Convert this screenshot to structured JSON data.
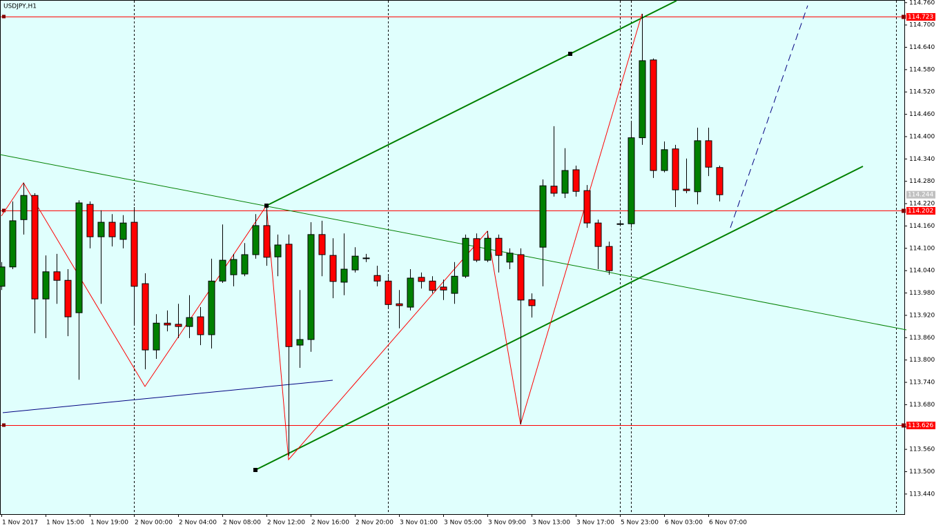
{
  "chart_data": {
    "type": "candlestick",
    "title": "USDJPY,H1",
    "categories": [
      "1 Nov 2017",
      null,
      null,
      null,
      "1 Nov 15:00",
      null,
      null,
      null,
      "1 Nov 19:00",
      null,
      null,
      null,
      "2 Nov 00:00",
      null,
      null,
      null,
      "2 Nov 04:00",
      null,
      null,
      null,
      "2 Nov 08:00",
      null,
      null,
      null,
      "2 Nov 12:00",
      null,
      null,
      null,
      "2 Nov 16:00",
      null,
      null,
      null,
      "2 Nov 20:00",
      null,
      null,
      null,
      "3 Nov 01:00",
      null,
      null,
      null,
      "3 Nov 05:00",
      null,
      null,
      null,
      "3 Nov 09:00",
      null,
      null,
      null,
      "3 Nov 13:00",
      null,
      null,
      null,
      "3 Nov 17:00",
      null,
      null,
      null,
      "5 Nov 23:00",
      null,
      null,
      null,
      "6 Nov 03:00",
      null,
      null,
      null,
      "6 Nov 07:00",
      null
    ],
    "open": [
      113.998,
      114.05,
      114.177,
      114.242,
      113.964,
      114.037,
      114.014,
      113.927,
      114.218,
      114.131,
      114.17,
      114.124,
      114.17,
      114.005,
      113.827,
      113.899,
      113.896,
      113.89,
      113.916,
      113.868,
      114.012,
      114.029,
      114.031,
      114.083,
      114.161,
      114.077,
      114.111,
      113.84,
      113.855,
      114.137,
      114.081,
      114.009,
      114.042,
      114.074,
      114.027,
      114.012,
      113.951,
      113.942,
      114.022,
      114.012,
      113.996,
      113.979,
      114.025,
      114.126,
      114.068,
      114.127,
      114.063,
      114.083,
      113.962,
      114.103,
      114.267,
      114.248,
      114.311,
      114.255,
      114.168,
      114.105,
      114.166,
      114.166,
      114.397,
      114.606,
      114.309,
      114.367,
      114.259,
      114.252,
      114.389,
      114.317
    ],
    "high": [
      114.063,
      114.226,
      114.276,
      114.248,
      114.081,
      114.085,
      114.044,
      114.229,
      114.226,
      114.202,
      114.192,
      114.189,
      114.211,
      114.033,
      113.923,
      113.933,
      113.951,
      113.974,
      113.942,
      114.072,
      114.164,
      114.085,
      114.114,
      114.192,
      114.215,
      114.137,
      114.137,
      113.988,
      114.17,
      114.174,
      114.127,
      114.14,
      114.103,
      114.085,
      114.053,
      114.025,
      113.988,
      114.044,
      114.035,
      114.025,
      114.016,
      114.063,
      114.137,
      114.14,
      114.146,
      114.137,
      114.1,
      114.1,
      113.979,
      114.285,
      114.428,
      114.369,
      114.322,
      114.27,
      114.177,
      114.118,
      114.17,
      114.437,
      114.73,
      114.61,
      114.387,
      114.378,
      114.341,
      114.424,
      114.424,
      114.322
    ],
    "low": [
      113.988,
      114.044,
      114.137,
      113.872,
      113.859,
      113.951,
      113.864,
      113.747,
      114.1,
      113.951,
      114.105,
      114.1,
      113.896,
      113.775,
      113.803,
      113.877,
      113.859,
      113.859,
      113.84,
      113.831,
      114.007,
      113.998,
      114.025,
      114.072,
      114.053,
      114.025,
      113.543,
      113.779,
      113.822,
      114.025,
      113.966,
      113.974,
      114.035,
      114.063,
      113.998,
      113.942,
      113.885,
      113.933,
      113.992,
      113.979,
      113.961,
      113.951,
      114.02,
      114.063,
      114.063,
      114.035,
      114.044,
      113.627,
      113.914,
      113.998,
      114.239,
      114.235,
      114.239,
      114.155,
      114.044,
      114.029,
      114.163,
      114.155,
      114.378,
      114.289,
      114.304,
      114.211,
      114.248,
      114.218,
      114.294,
      114.226
    ],
    "close": [
      114.05,
      114.174,
      114.242,
      113.964,
      114.037,
      114.014,
      113.916,
      114.222,
      114.131,
      114.17,
      114.131,
      114.168,
      113.998,
      113.827,
      113.899,
      113.894,
      113.89,
      113.914,
      113.868,
      114.012,
      114.068,
      114.07,
      114.083,
      114.161,
      114.076,
      114.109,
      113.836,
      113.855,
      114.137,
      114.083,
      114.011,
      114.044,
      114.079,
      114.074,
      114.012,
      113.949,
      113.946,
      114.02,
      114.011,
      113.987,
      113.988,
      114.025,
      114.127,
      114.068,
      114.127,
      114.081,
      114.087,
      113.961,
      113.946,
      114.268,
      114.248,
      114.309,
      114.253,
      114.168,
      114.105,
      114.04,
      114.166,
      114.397,
      114.604,
      114.309,
      114.365,
      114.257,
      114.255,
      114.389,
      114.318,
      114.244
    ],
    "up_color": "#008000",
    "down_color": "#ff0000",
    "ylim": [
      113.386,
      114.767
    ],
    "yticks": [
      {
        "value": 114.76,
        "label": "114.760"
      },
      {
        "value": 114.7,
        "label": "114.700"
      },
      {
        "value": 114.64,
        "label": "114.640"
      },
      {
        "value": 114.58,
        "label": "114.580"
      },
      {
        "value": 114.52,
        "label": "114.520"
      },
      {
        "value": 114.46,
        "label": "114.460"
      },
      {
        "value": 114.4,
        "label": "114.400"
      },
      {
        "value": 114.34,
        "label": "114.340"
      },
      {
        "value": 114.28,
        "label": "114.280"
      },
      {
        "value": 114.22,
        "label": "114.220"
      },
      {
        "value": 114.16,
        "label": "114.160"
      },
      {
        "value": 114.1,
        "label": "114.100"
      },
      {
        "value": 114.04,
        "label": "114.040"
      },
      {
        "value": 113.98,
        "label": "113.980"
      },
      {
        "value": 113.92,
        "label": "113.920"
      },
      {
        "value": 113.86,
        "label": "113.860"
      },
      {
        "value": 113.8,
        "label": "113.800"
      },
      {
        "value": 113.74,
        "label": "113.740"
      },
      {
        "value": 113.68,
        "label": "113.680"
      },
      {
        "value": 113.62,
        "label": "113.620"
      },
      {
        "value": 113.56,
        "label": "113.560"
      },
      {
        "value": 113.5,
        "label": "113.500"
      },
      {
        "value": 113.44,
        "label": "113.440"
      }
    ],
    "levels": [
      {
        "value": 114.723,
        "label": "114.723"
      },
      {
        "value": 114.202,
        "label": "114.202"
      },
      {
        "value": 113.626,
        "label": "113.626"
      }
    ],
    "level_color": "#ff0000",
    "bid": {
      "value": 114.244,
      "label": "114.244"
    }
  }
}
